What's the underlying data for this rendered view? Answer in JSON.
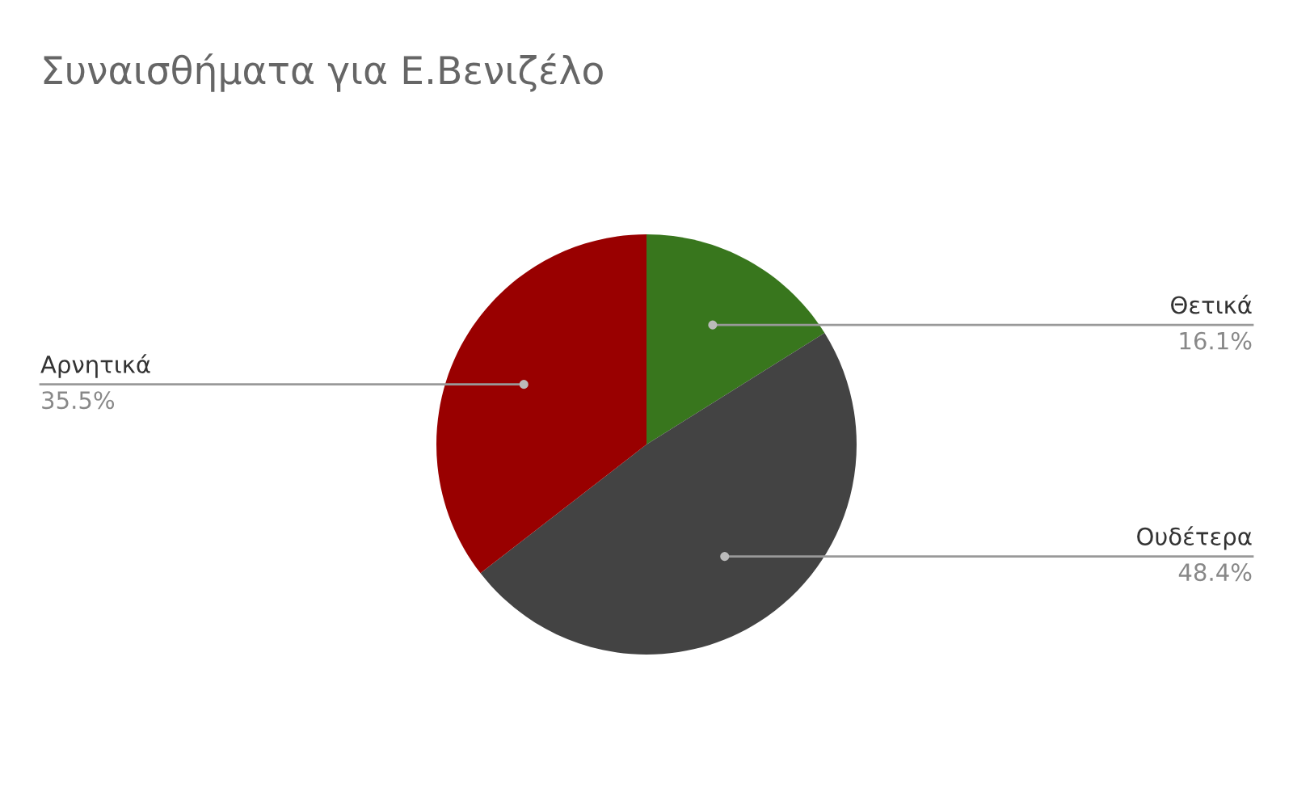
{
  "chart_data": {
    "type": "pie",
    "title": "Συναισθήματα για Ε.Βενιζέλο",
    "categories": [
      "Θετικά",
      "Ουδέτερα",
      "Αρνητικά"
    ],
    "values": [
      16.1,
      48.4,
      35.5
    ],
    "colors": [
      "#38761d",
      "#434343",
      "#990000"
    ],
    "value_labels": [
      "16.1%",
      "48.4%",
      "35.5%"
    ],
    "legend": false
  }
}
